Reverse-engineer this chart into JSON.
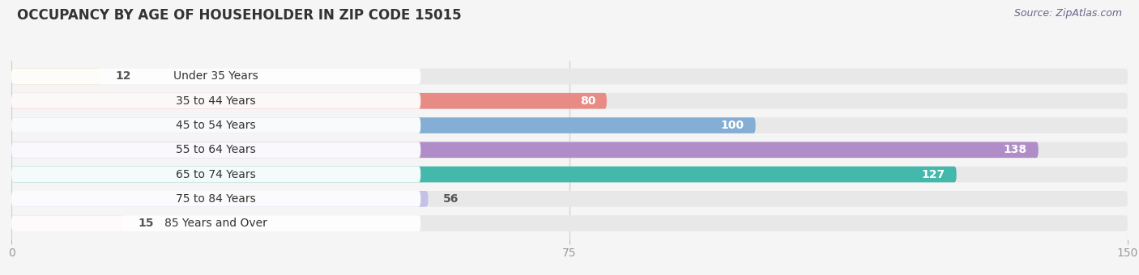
{
  "title": "OCCUPANCY BY AGE OF HOUSEHOLDER IN ZIP CODE 15015",
  "source": "Source: ZipAtlas.com",
  "categories": [
    "Under 35 Years",
    "35 to 44 Years",
    "45 to 54 Years",
    "55 to 64 Years",
    "65 to 74 Years",
    "75 to 84 Years",
    "85 Years and Over"
  ],
  "values": [
    12,
    80,
    100,
    138,
    127,
    56,
    15
  ],
  "bar_colors": [
    "#f5c8a0",
    "#e88b85",
    "#85aed4",
    "#b08dc8",
    "#45b8ac",
    "#c4c0e8",
    "#f0a8c0"
  ],
  "bar_bg_color": "#e8e8e8",
  "fig_bg_color": "#f5f5f5",
  "xlim": [
    0,
    150
  ],
  "xticks": [
    0,
    75,
    150
  ],
  "title_fontsize": 12,
  "source_fontsize": 9,
  "label_fontsize": 10,
  "value_fontsize": 10,
  "bar_height": 0.65,
  "title_color": "#333333",
  "source_color": "#666688",
  "label_color": "#333333",
  "value_color_inside": "#ffffff",
  "value_color_outside": "#555555",
  "tick_color": "#999999",
  "grid_color": "#cccccc",
  "label_pill_color": "#ffffff",
  "label_pill_alpha": 0.95
}
